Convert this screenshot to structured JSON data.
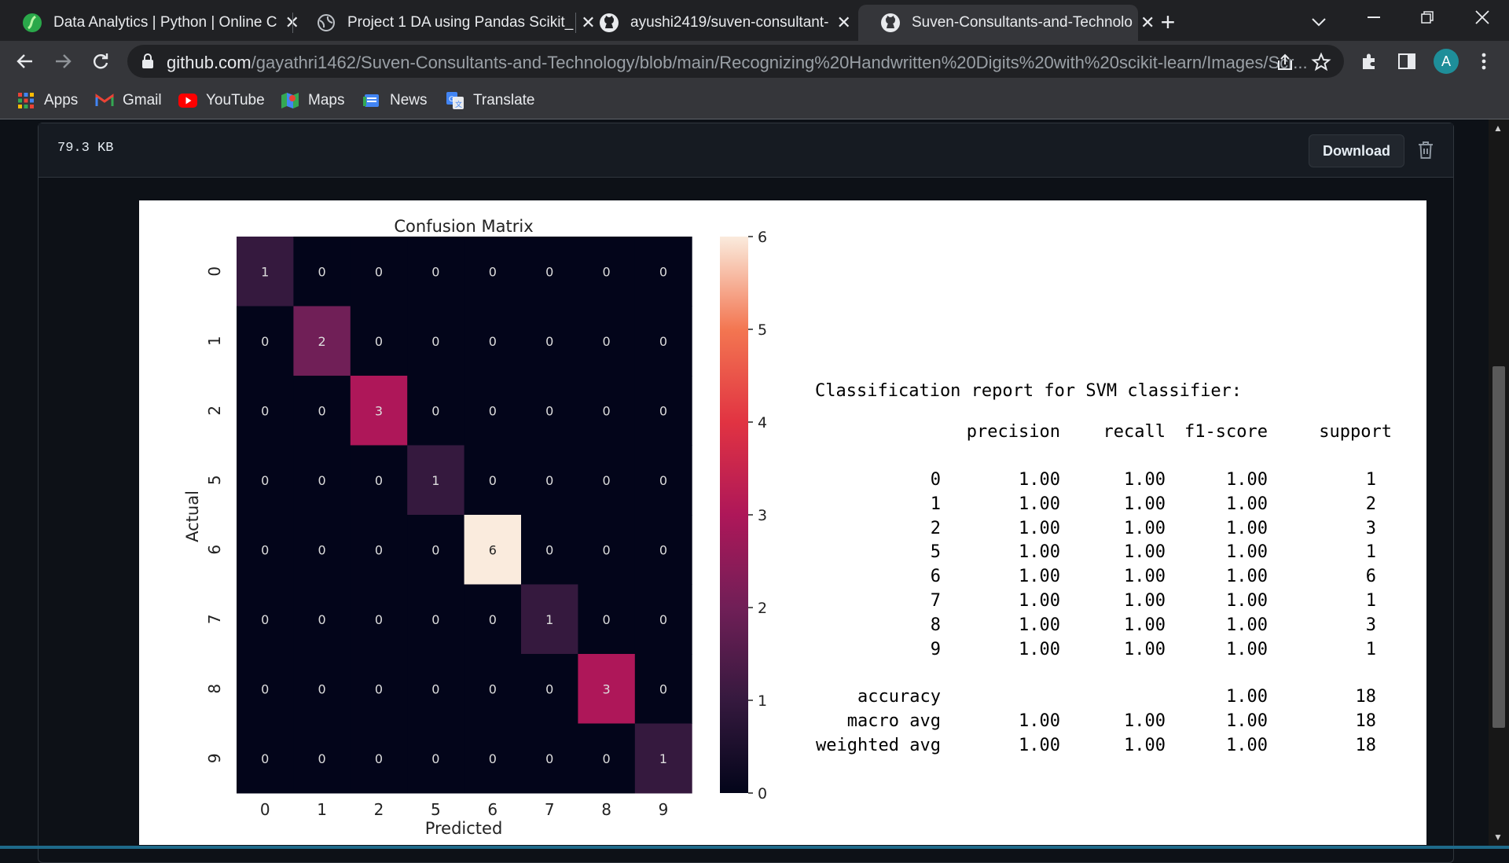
{
  "browser": {
    "tabs": [
      {
        "title": "Data Analytics | Python | Online C",
        "favicon": "sphere-green-icon"
      },
      {
        "title": "Project 1 DA using Pandas Scikit_",
        "favicon": "globe-icon"
      },
      {
        "title": "ayushi2419/suven-consultant-",
        "favicon": "github-icon"
      },
      {
        "title": "Suven-Consultants-and-Technolo",
        "favicon": "github-icon"
      }
    ],
    "active_tab": 3,
    "url_domain": "github.com",
    "url_path": "/gayathri1462/Suven-Consultants-and-Technology/blob/main/Recognizing%20Handwritten%20Digits%20with%20scikit-learn/Images/Scr...",
    "avatar_letter": "A",
    "bookmarks": [
      {
        "label": "Apps",
        "icon": "apps-grid-icon"
      },
      {
        "label": "Gmail",
        "icon": "gmail-icon"
      },
      {
        "label": "YouTube",
        "icon": "youtube-icon"
      },
      {
        "label": "Maps",
        "icon": "maps-icon"
      },
      {
        "label": "News",
        "icon": "news-icon"
      },
      {
        "label": "Translate",
        "icon": "translate-icon"
      }
    ]
  },
  "file": {
    "size": "79.3 KB",
    "download_label": "Download"
  },
  "chart_data": {
    "type": "heatmap",
    "title": "Confusion Matrix",
    "xlabel": "Predicted",
    "ylabel": "Actual",
    "labels": [
      "0",
      "1",
      "2",
      "5",
      "6",
      "7",
      "8",
      "9"
    ],
    "matrix": [
      [
        1,
        0,
        0,
        0,
        0,
        0,
        0,
        0
      ],
      [
        0,
        2,
        0,
        0,
        0,
        0,
        0,
        0
      ],
      [
        0,
        0,
        3,
        0,
        0,
        0,
        0,
        0
      ],
      [
        0,
        0,
        0,
        1,
        0,
        0,
        0,
        0
      ],
      [
        0,
        0,
        0,
        0,
        6,
        0,
        0,
        0
      ],
      [
        0,
        0,
        0,
        0,
        0,
        1,
        0,
        0
      ],
      [
        0,
        0,
        0,
        0,
        0,
        0,
        3,
        0
      ],
      [
        0,
        0,
        0,
        0,
        0,
        0,
        0,
        1
      ]
    ],
    "colorbar_range": [
      0,
      6
    ],
    "colorbar_ticks": [
      "0",
      "1",
      "2",
      "3",
      "4",
      "5",
      "6"
    ],
    "colormap": "rocket"
  },
  "report": {
    "title": "Classification report for SVM classifier:",
    "headers": [
      "precision",
      "recall",
      "f1-score",
      "support"
    ],
    "rows": [
      {
        "label": "0",
        "precision": "1.00",
        "recall": "1.00",
        "f1": "1.00",
        "support": "1"
      },
      {
        "label": "1",
        "precision": "1.00",
        "recall": "1.00",
        "f1": "1.00",
        "support": "2"
      },
      {
        "label": "2",
        "precision": "1.00",
        "recall": "1.00",
        "f1": "1.00",
        "support": "3"
      },
      {
        "label": "5",
        "precision": "1.00",
        "recall": "1.00",
        "f1": "1.00",
        "support": "1"
      },
      {
        "label": "6",
        "precision": "1.00",
        "recall": "1.00",
        "f1": "1.00",
        "support": "6"
      },
      {
        "label": "7",
        "precision": "1.00",
        "recall": "1.00",
        "f1": "1.00",
        "support": "1"
      },
      {
        "label": "8",
        "precision": "1.00",
        "recall": "1.00",
        "f1": "1.00",
        "support": "3"
      },
      {
        "label": "9",
        "precision": "1.00",
        "recall": "1.00",
        "f1": "1.00",
        "support": "1"
      }
    ],
    "summary": [
      {
        "label": "accuracy",
        "precision": "",
        "recall": "",
        "f1": "1.00",
        "support": "18"
      },
      {
        "label": "macro avg",
        "precision": "1.00",
        "recall": "1.00",
        "f1": "1.00",
        "support": "18"
      },
      {
        "label": "weighted avg",
        "precision": "1.00",
        "recall": "1.00",
        "f1": "1.00",
        "support": "18"
      }
    ]
  }
}
